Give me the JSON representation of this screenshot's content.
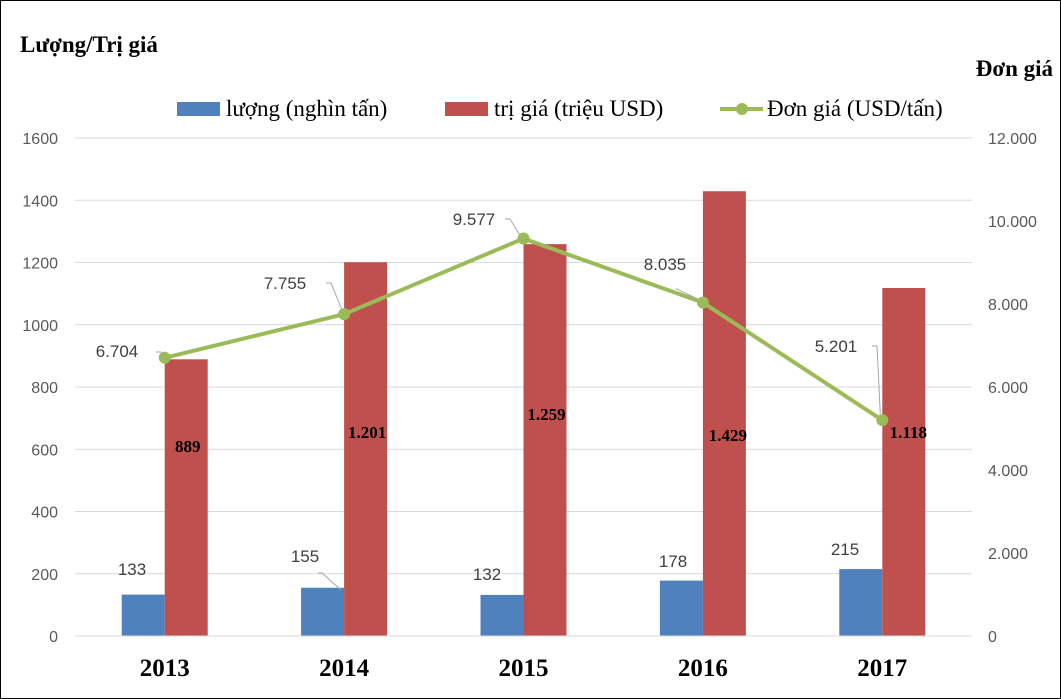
{
  "chart_data": {
    "type": "bar+line",
    "left_axis_title": "Lượng/Trị giá",
    "right_axis_title": "Đơn giá",
    "categories": [
      "2013",
      "2014",
      "2015",
      "2016",
      "2017"
    ],
    "series": [
      {
        "name": "lượng (nghìn tấn)",
        "type": "bar",
        "axis": "left",
        "color": "#4F81BD",
        "values": [
          133,
          155,
          132,
          178,
          215
        ],
        "labels": [
          "133",
          "155",
          "132",
          "178",
          "215"
        ]
      },
      {
        "name": "trị giá (triệu USD)",
        "type": "bar",
        "axis": "left",
        "color": "#C0504D",
        "values": [
          889,
          1201,
          1259,
          1429,
          1118
        ],
        "labels": [
          "889",
          "1.201",
          "1.259",
          "1.429",
          "1.118"
        ]
      },
      {
        "name": "Đơn giá (USD/tấn)",
        "type": "line",
        "axis": "right",
        "color": "#9BBB59",
        "values": [
          6704,
          7755,
          9577,
          8035,
          5201
        ],
        "labels": [
          "6.704",
          "7.755",
          "9.577",
          "8.035",
          "5.201"
        ]
      }
    ],
    "left_axis": {
      "min": 0,
      "max": 1600,
      "ticks": [
        0,
        200,
        400,
        600,
        800,
        1000,
        1200,
        1400,
        1600
      ],
      "tick_labels": [
        "0",
        "200",
        "400",
        "600",
        "800",
        "1000",
        "1200",
        "1400",
        "1600"
      ]
    },
    "right_axis": {
      "min": 0,
      "max": 12000,
      "ticks": [
        0,
        2000,
        4000,
        6000,
        8000,
        10000,
        12000
      ],
      "tick_labels": [
        "0",
        "2.000",
        "4.000",
        "6.000",
        "8.000",
        "10.000",
        "12.000"
      ]
    },
    "grid": true,
    "legend_position": "top"
  },
  "colors": {
    "gridline": "#D9D9D9",
    "tick_text": "#595959",
    "leader_line": "#A6A6A6"
  }
}
